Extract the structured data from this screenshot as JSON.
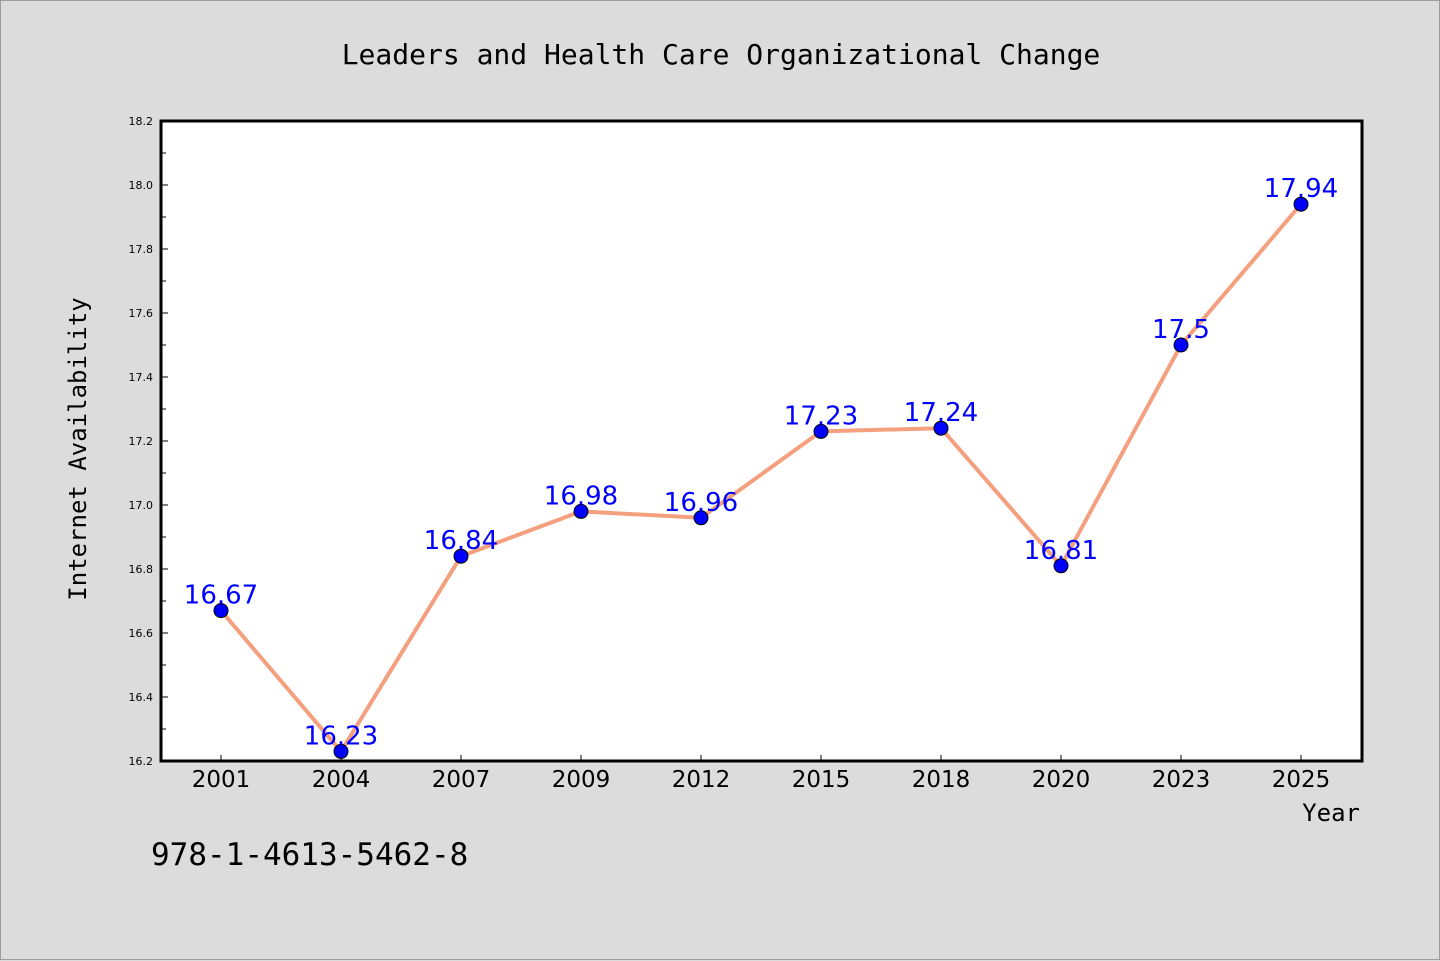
{
  "chart_data": {
    "type": "line",
    "title": "Leaders and Health Care Organizational Change",
    "xlabel": "Year",
    "ylabel": "Internet Availability",
    "categories": [
      "2001",
      "2004",
      "2007",
      "2009",
      "2012",
      "2015",
      "2018",
      "2020",
      "2023",
      "2025"
    ],
    "values": [
      16.67,
      16.23,
      16.84,
      16.98,
      16.96,
      17.23,
      17.24,
      16.81,
      17.5,
      17.94
    ],
    "data_labels": [
      "16.67",
      "16.23",
      "16.84",
      "16.98",
      "16.96",
      "17.23",
      "17.24",
      "16.81",
      "17.5",
      "17.94"
    ],
    "ylim": [
      16.2,
      18.2
    ],
    "y_ticks": [
      "16.2",
      "16.4",
      "16.6",
      "16.8",
      "17.0",
      "17.2",
      "17.4",
      "17.6",
      "17.8",
      "18.0",
      "18.2"
    ],
    "grid": false,
    "line_color": "#f4a07e",
    "marker_color": "#0000ff",
    "label_color": "#0000ff"
  },
  "footer": {
    "isbn": "978-1-4613-5462-8"
  }
}
